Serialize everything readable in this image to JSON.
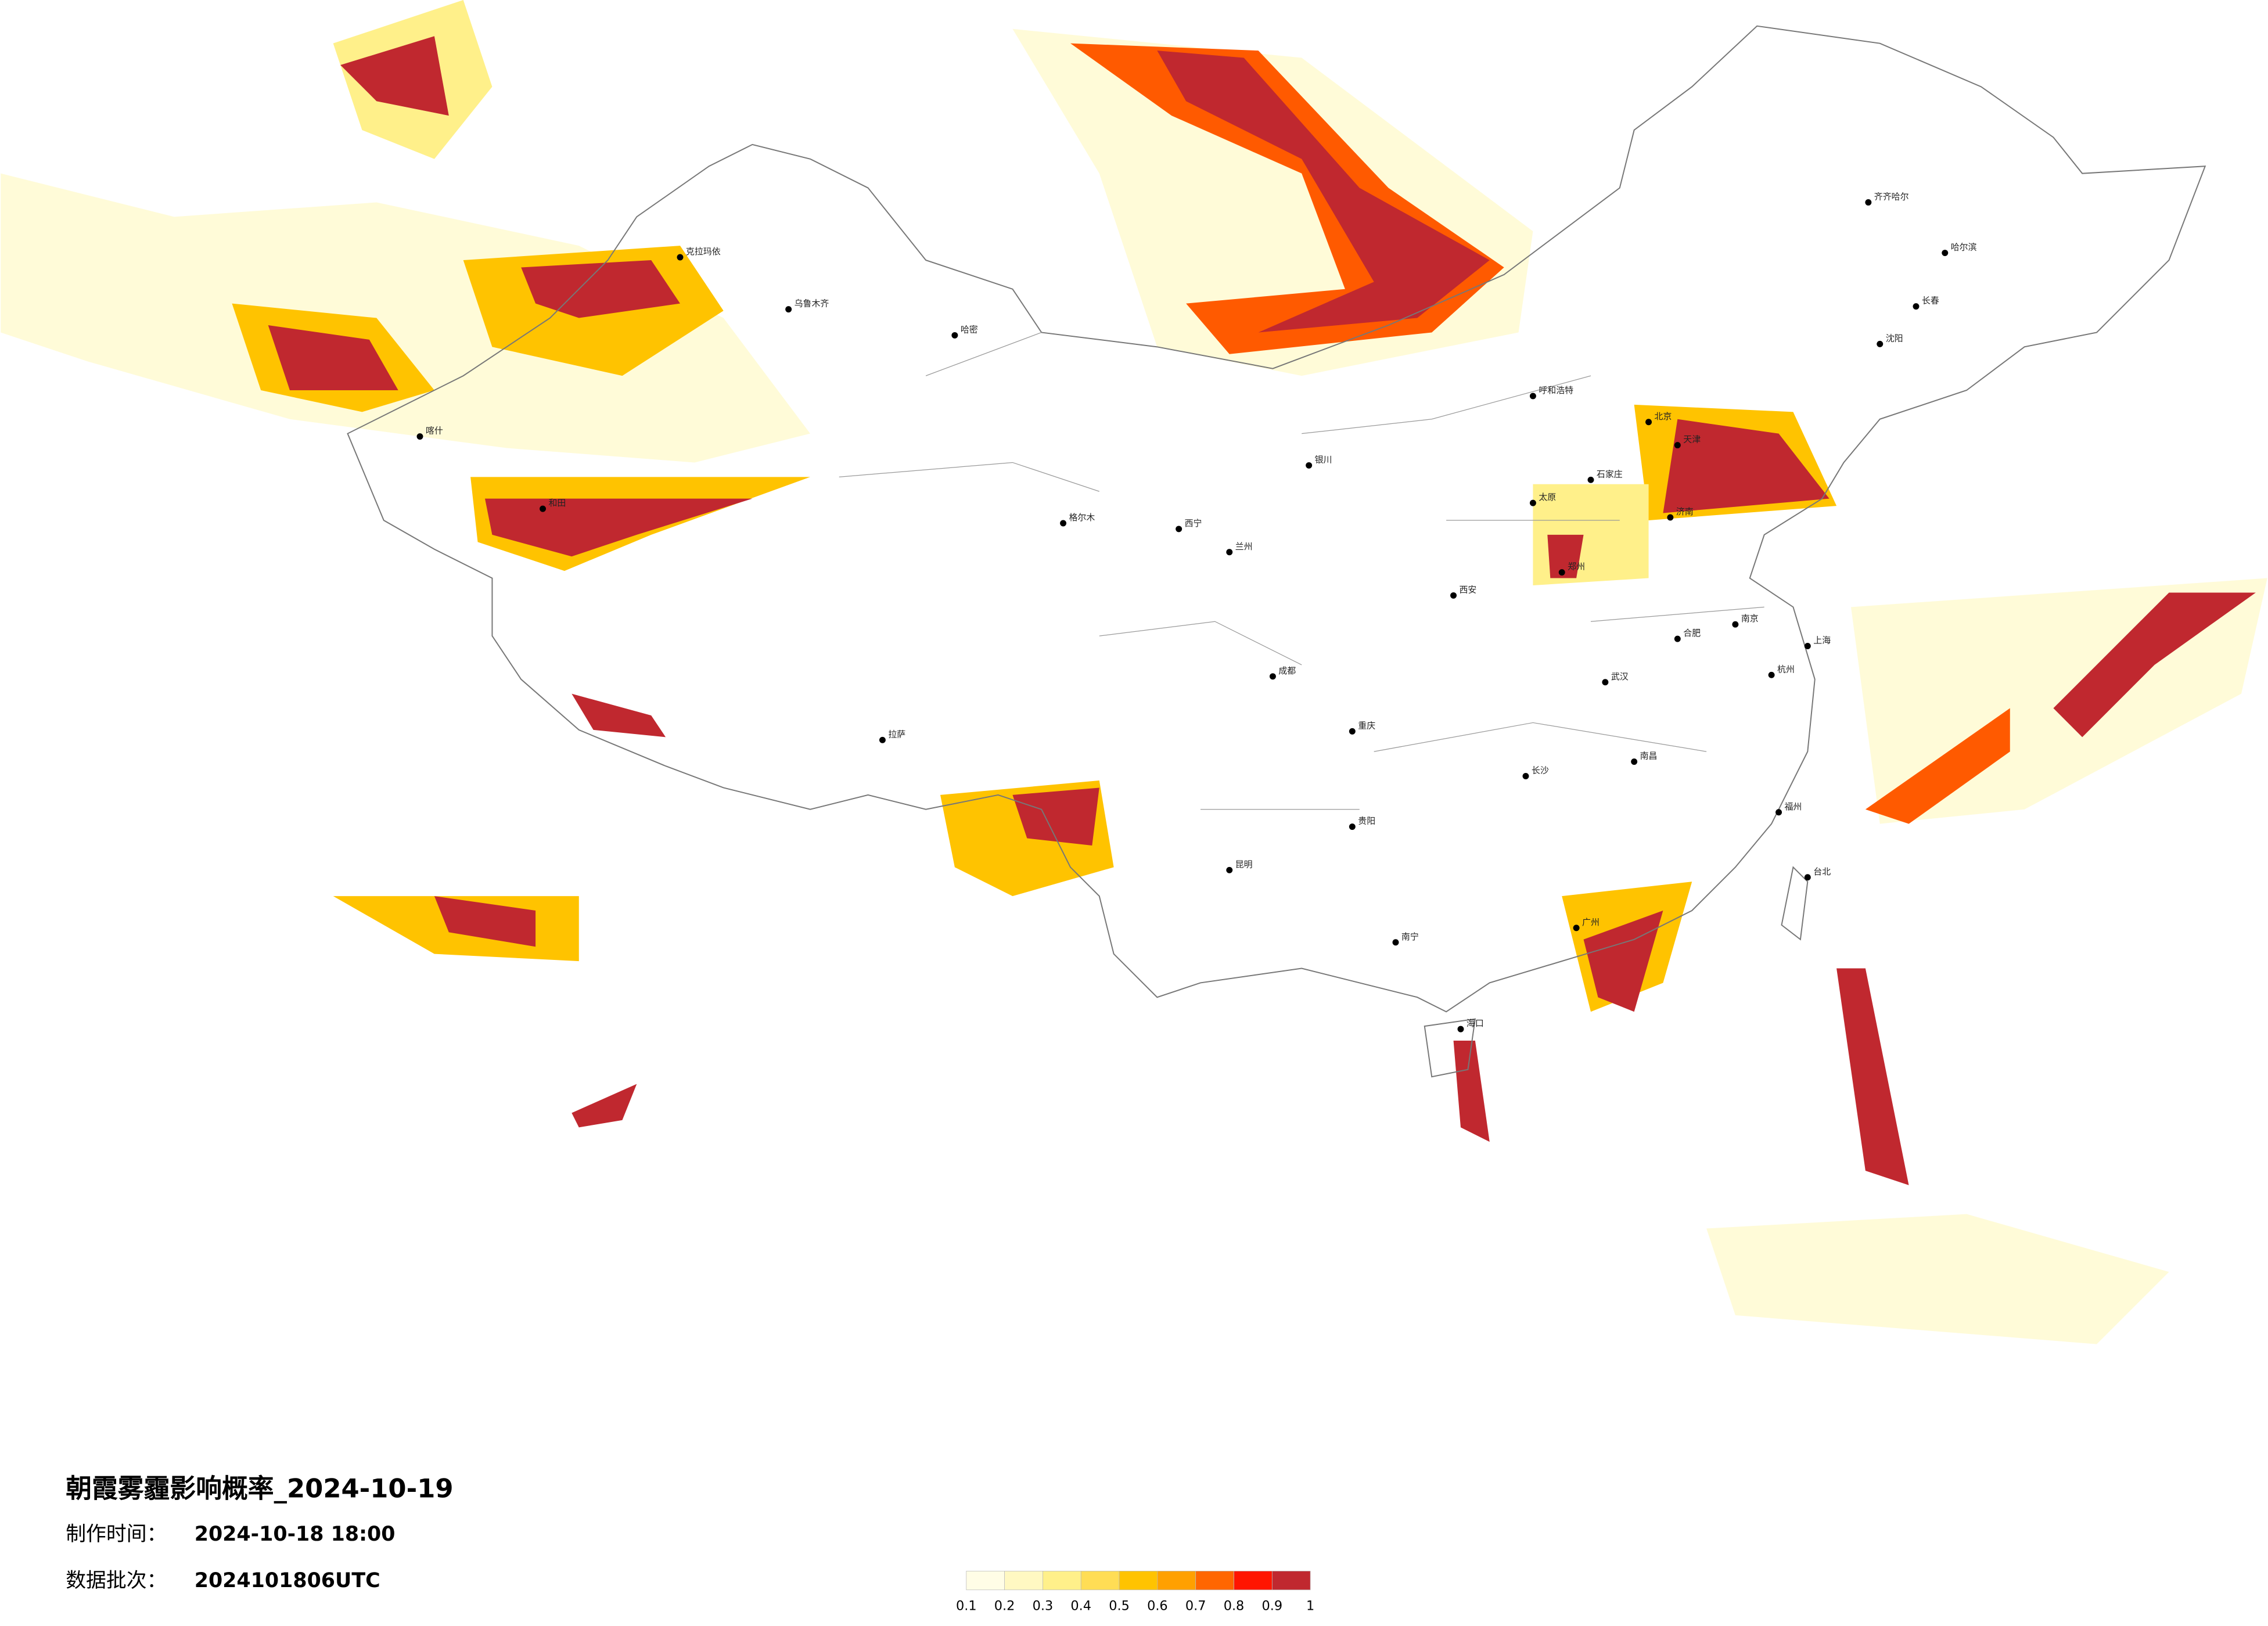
{
  "title": "朝霞雾霾影响概率_2024-10-19",
  "made_time": {
    "label": "制作时间：",
    "value": "2024-10-18 18:00"
  },
  "batch": {
    "label": "数据批次：",
    "value": "2024101806UTC"
  },
  "legend": {
    "ticks": [
      0.1,
      0.2,
      0.3,
      0.4,
      0.5,
      0.6,
      0.7,
      0.8,
      0.9,
      1
    ],
    "colors": [
      "#fffde6",
      "#fff8c2",
      "#fff08a",
      "#ffdd55",
      "#ffc300",
      "#ffa000",
      "#ff6600",
      "#ff1500",
      "#c0282f"
    ]
  },
  "cities": [
    "齐齐哈尔",
    "哈尔滨",
    "长春",
    "沈阳",
    "北京",
    "天津",
    "石家庄",
    "太原",
    "济南",
    "郑州",
    "西安",
    "兰州",
    "西宁",
    "银川",
    "呼和浩特",
    "乌鲁木齐",
    "拉萨",
    "成都",
    "重庆",
    "贵阳",
    "昆明",
    "南宁",
    "广州",
    "长沙",
    "武汉",
    "南昌",
    "合肥",
    "南京",
    "上海",
    "杭州",
    "福州",
    "台北",
    "海口",
    "喀什",
    "和田",
    "哈密",
    "格尔木",
    "克拉玛依"
  ]
}
